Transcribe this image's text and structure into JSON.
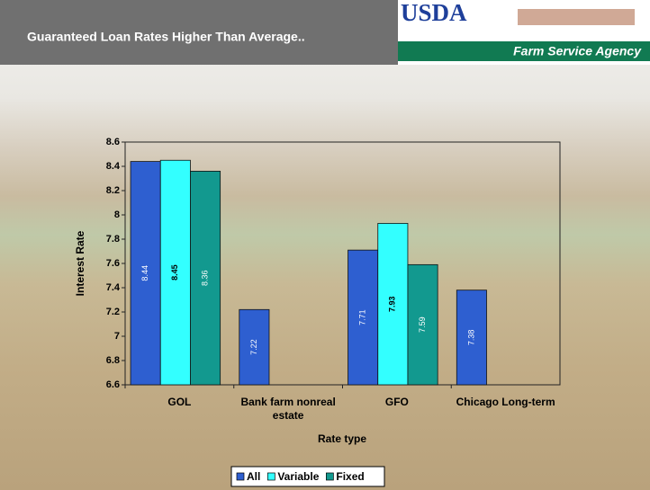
{
  "header": {
    "title": "Guaranteed Loan Rates Higher Than Average..",
    "logo": "USDA",
    "agency": "Farm Service Agency"
  },
  "chart_data": {
    "type": "bar",
    "categories": [
      "GOL",
      "Bank farm nonreal estate",
      "GFO",
      "Chicago Long-term"
    ],
    "series": [
      {
        "name": "All",
        "color": "#2e5fd0",
        "values": [
          8.44,
          7.22,
          7.71,
          7.38
        ]
      },
      {
        "name": "Variable",
        "color": "#33ffff",
        "values": [
          8.45,
          null,
          7.93,
          null
        ]
      },
      {
        "name": "Fixed",
        "color": "#12998f",
        "values": [
          8.36,
          null,
          7.59,
          null
        ]
      }
    ],
    "ylim": [
      6.6,
      8.6
    ],
    "yticks": [
      6.6,
      6.8,
      7,
      7.2,
      7.4,
      7.6,
      7.8,
      8,
      8.2,
      8.4,
      8.6
    ],
    "y_label": "Interest Rate",
    "x_label": "Rate type",
    "legend": "bottom"
  }
}
